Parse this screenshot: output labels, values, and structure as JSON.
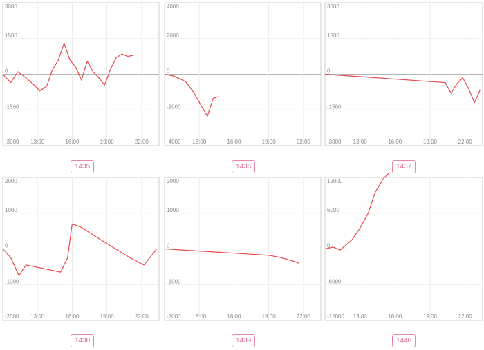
{
  "chart_data": [
    {
      "type": "line",
      "label": "1435",
      "yticks": [
        3000,
        1500,
        0,
        -1500,
        -3000
      ],
      "ytick_labels": [
        "3000",
        "1500",
        "0",
        "-1500",
        "-3000"
      ],
      "ylim": [
        -3000,
        3000
      ],
      "xlim": [
        10.0,
        23.5
      ],
      "xticks": [
        13,
        16,
        19,
        22
      ],
      "xtick_labels": [
        "13:00",
        "16:00",
        "19:00",
        "22:00"
      ],
      "grid": true,
      "color": "#e8474a",
      "x": [
        10.0,
        10.7,
        11.3,
        12.0,
        12.7,
        13.2,
        13.8,
        14.3,
        14.8,
        15.3,
        15.8,
        16.3,
        16.8,
        17.3,
        17.8,
        18.3,
        18.8,
        19.3,
        19.8,
        20.3,
        20.8,
        21.3
      ],
      "y": [
        0,
        -350,
        100,
        -150,
        -450,
        -700,
        -500,
        200,
        600,
        1300,
        600,
        300,
        -250,
        550,
        100,
        -150,
        -450,
        200,
        700,
        850,
        750,
        800
      ]
    },
    {
      "type": "line",
      "label": "1436",
      "yticks": [
        4000,
        2000,
        0,
        -2000,
        -4000
      ],
      "ytick_labels": [
        "4000",
        "2000",
        "0",
        "-2000",
        "-4000"
      ],
      "ylim": [
        -4000,
        4000
      ],
      "xlim": [
        10.0,
        23.5
      ],
      "xticks": [
        13,
        16,
        19,
        22
      ],
      "xtick_labels": [
        "13:00",
        "16:00",
        "19:00",
        "22:00"
      ],
      "grid": true,
      "color": "#e8474a",
      "x": [
        10.0,
        10.8,
        11.8,
        12.5,
        13.2,
        13.7,
        14.2,
        14.7
      ],
      "y": [
        0,
        -100,
        -400,
        -1000,
        -1800,
        -2350,
        -1350,
        -1250
      ]
    },
    {
      "type": "line",
      "label": "1437",
      "yticks": [
        3000,
        1500,
        0,
        -1500,
        -3000
      ],
      "ytick_labels": [
        "3000",
        "1500",
        "0",
        "-1500",
        "-3000"
      ],
      "ylim": [
        -3000,
        3000
      ],
      "xlim": [
        10.0,
        23.5
      ],
      "xticks": [
        13,
        16,
        19,
        22
      ],
      "xtick_labels": [
        "13:00",
        "16:00",
        "19:00",
        "22:00"
      ],
      "grid": true,
      "color": "#e8474a",
      "x": [
        10.0,
        20.3,
        20.8,
        21.3,
        21.8,
        22.3,
        22.8,
        23.3
      ],
      "y": [
        0,
        -350,
        -800,
        -400,
        -150,
        -600,
        -1200,
        -650
      ]
    },
    {
      "type": "line",
      "label": "1438",
      "yticks": [
        2000,
        1000,
        0,
        -1000,
        -2000
      ],
      "ytick_labels": [
        "2000",
        "1000",
        "0",
        "-1000",
        "-2000"
      ],
      "ylim": [
        -2000,
        2000
      ],
      "xlim": [
        10.0,
        23.5
      ],
      "xticks": [
        13,
        16,
        19,
        22
      ],
      "xtick_labels": [
        "13:00",
        "16:00",
        "19:00",
        "22:00"
      ],
      "grid": true,
      "color": "#e8474a",
      "x": [
        10.0,
        10.7,
        11.4,
        12.0,
        15.0,
        15.6,
        16.0,
        16.8,
        18.0,
        19.5,
        21.0,
        22.2,
        23.3
      ],
      "y": [
        0,
        -250,
        -750,
        -450,
        -650,
        -250,
        700,
        600,
        350,
        50,
        -250,
        -450,
        0
      ]
    },
    {
      "type": "line",
      "label": "1439",
      "yticks": [
        2000,
        1000,
        0,
        -1000,
        -2000
      ],
      "ytick_labels": [
        "2000",
        "1000",
        "0",
        "-1000",
        "-2000"
      ],
      "ylim": [
        -2000,
        2000
      ],
      "xlim": [
        10.0,
        23.5
      ],
      "xticks": [
        13,
        16,
        19,
        22
      ],
      "xtick_labels": [
        "13:00",
        "16:00",
        "19:00",
        "22:00"
      ],
      "grid": true,
      "color": "#e8474a",
      "x": [
        10.0,
        12.0,
        14.0,
        16.0,
        17.5,
        19.0,
        20.0,
        21.0,
        21.6
      ],
      "y": [
        0,
        -40,
        -80,
        -120,
        -150,
        -180,
        -240,
        -330,
        -400
      ]
    },
    {
      "type": "line",
      "label": "1440",
      "yticks": [
        12000,
        6000,
        0,
        -6000,
        -12000
      ],
      "ytick_labels": [
        "12000",
        "6000",
        "0",
        "-6000",
        "-12000"
      ],
      "ylim": [
        -12000,
        12000
      ],
      "xlim": [
        10.0,
        23.5
      ],
      "xticks": [
        13,
        16,
        19,
        22
      ],
      "xtick_labels": [
        "13:00",
        "16:00",
        "19:00",
        "22:00"
      ],
      "grid": true,
      "color": "#e8474a",
      "x": [
        10.0,
        10.7,
        11.3,
        12.3,
        13.0,
        13.7,
        14.3,
        15.0,
        15.5
      ],
      "y": [
        0,
        300,
        -200,
        1500,
        3500,
        6000,
        9500,
        11800,
        12800
      ]
    }
  ]
}
